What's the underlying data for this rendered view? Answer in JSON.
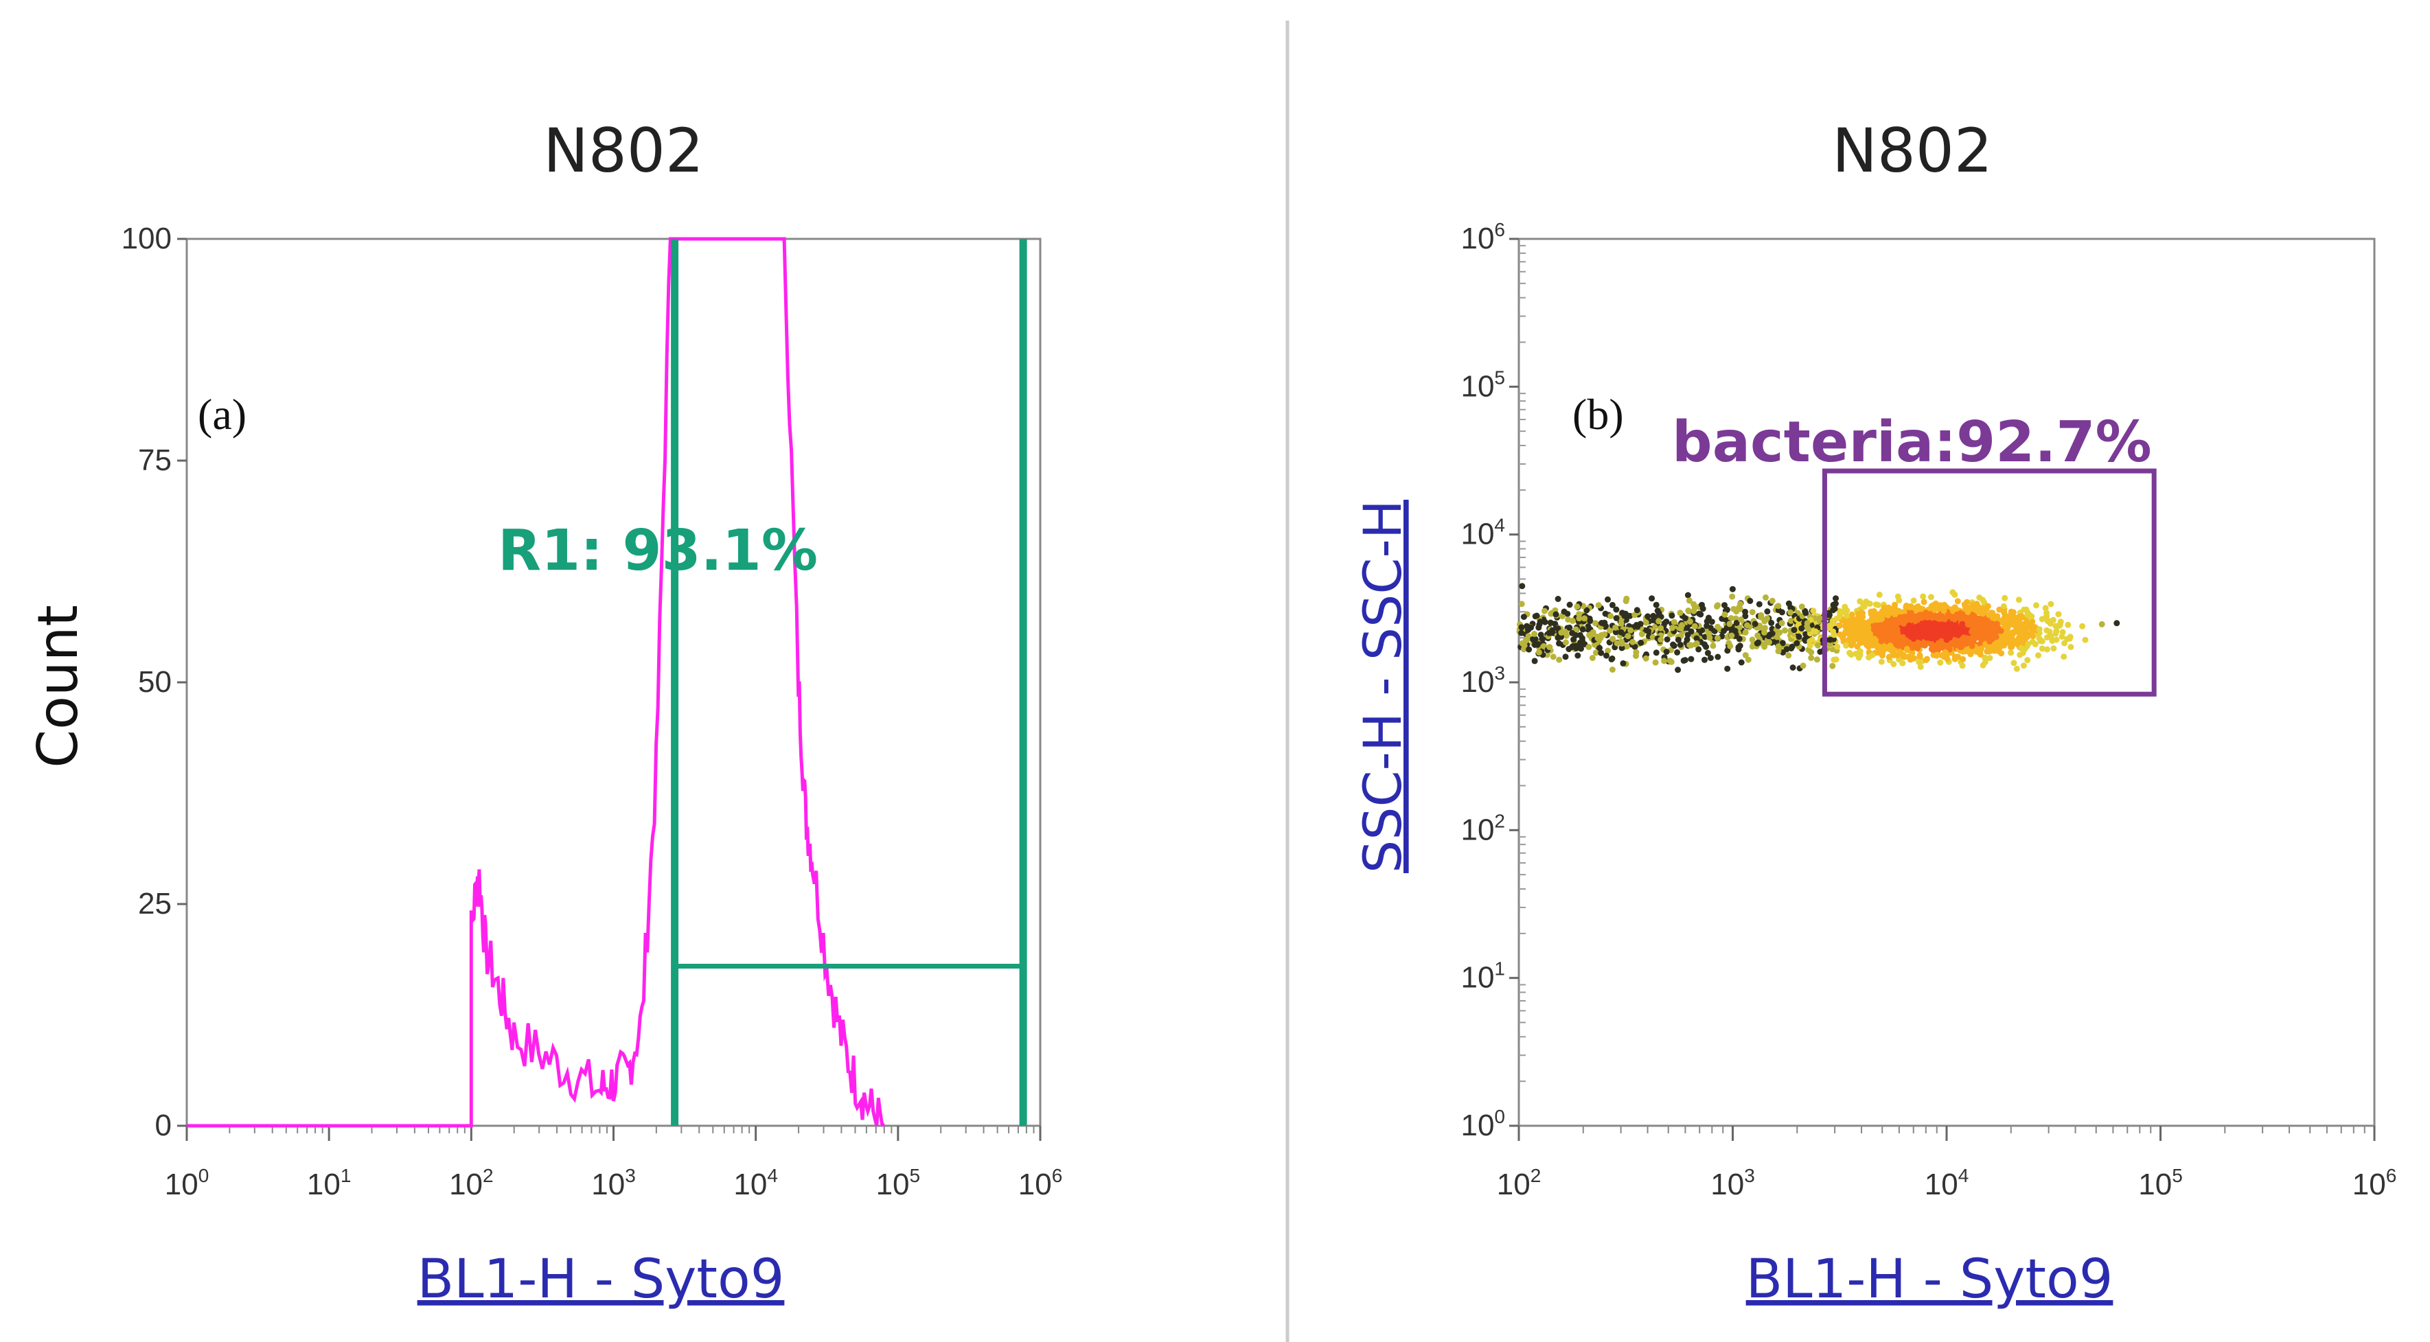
{
  "colors": {
    "histogram": "#ff22ee",
    "gate_r1": "#17a07a",
    "gate_bacteria": "#7b3a96",
    "axis_label": "#2b2bb0",
    "divider": "#cccccc"
  },
  "chart_data": [
    {
      "type": "histogram",
      "panel_label": "(a)",
      "title": "N802",
      "xlabel": "BL1-H - Syto9",
      "ylabel": "Count",
      "xscale": "log",
      "xlim": [
        1,
        1000000
      ],
      "ylim": [
        0,
        100
      ],
      "x_ticks": [
        "10^0",
        "10^1",
        "10^2",
        "10^3",
        "10^4",
        "10^5",
        "10^6"
      ],
      "y_ticks": [
        "0",
        "25",
        "50",
        "75",
        "100"
      ],
      "curve": {
        "log10_x": [
          0,
          2.0,
          2.0,
          2.05,
          2.1,
          2.2,
          2.3,
          2.5,
          2.7,
          2.9,
          3.0,
          3.1,
          3.2,
          3.3,
          3.4,
          3.5,
          3.6,
          3.7,
          3.8,
          3.9,
          4.0,
          4.1,
          4.2,
          4.3,
          4.35,
          4.4,
          4.5,
          4.6,
          4.7,
          4.8,
          4.9
        ],
        "count": [
          0,
          0,
          22,
          29,
          20,
          15,
          10,
          8,
          6,
          4,
          5,
          6,
          12,
          40,
          100,
          100,
          100,
          100,
          100,
          100,
          100,
          100,
          100,
          50,
          35,
          30,
          18,
          10,
          5,
          2,
          0
        ]
      },
      "gate": {
        "name": "R1",
        "x_range": [
          3.43,
          5.88
        ],
        "label": "R1: 93.1%"
      }
    },
    {
      "type": "scatter",
      "panel_label": "(b)",
      "title": "N802",
      "xlabel": "BL1-H - Syto9",
      "ylabel": "SSC-H - SSC-H",
      "xscale": "log",
      "yscale": "log",
      "xlim": [
        100,
        1000000
      ],
      "ylim": [
        1,
        1000000
      ],
      "x_ticks": [
        "10^2",
        "10^3",
        "10^4",
        "10^5",
        "10^6"
      ],
      "y_ticks": [
        "10^0",
        "10^1",
        "10^2",
        "10^3",
        "10^4",
        "10^5",
        "10^6"
      ],
      "density_center": {
        "log10_x": 3.95,
        "log10_y": 3.35
      },
      "gate": {
        "name": "bacteria",
        "x_range": [
          3.43,
          4.97
        ],
        "y_range": [
          2.92,
          4.43
        ],
        "label": "bacteria:92.7%"
      }
    }
  ]
}
